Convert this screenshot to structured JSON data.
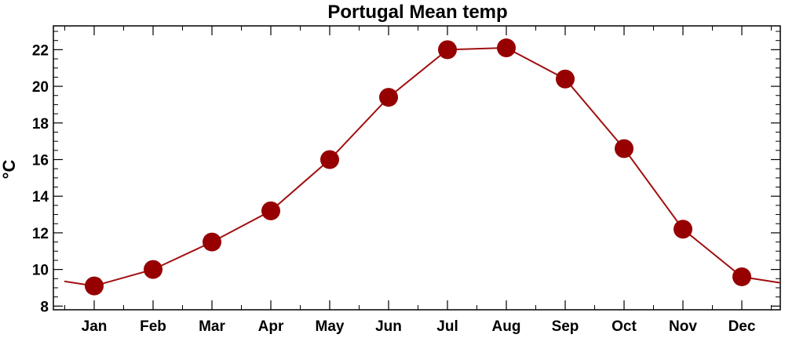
{
  "chart_data": {
    "type": "line",
    "title": "Portugal Mean temp",
    "xlabel": "",
    "ylabel": "°C",
    "categories": [
      "Jan",
      "Feb",
      "Mar",
      "Apr",
      "May",
      "Jun",
      "Jul",
      "Aug",
      "Sep",
      "Oct",
      "Nov",
      "Dec"
    ],
    "series": [
      {
        "values": [
          9.1,
          10.0,
          11.5,
          13.2,
          16.0,
          19.4,
          22.0,
          22.1,
          20.4,
          16.6,
          12.2,
          9.6
        ]
      }
    ],
    "ylim": [
      7.8,
      23.3
    ],
    "yticks": [
      8,
      10,
      12,
      14,
      16,
      18,
      20,
      22
    ],
    "ytick_labels": [
      "8",
      "10",
      "12",
      "14",
      "16",
      "18",
      "20",
      "22"
    ],
    "grid": false,
    "line_color": "#a01010",
    "marker_color": "#960000"
  }
}
